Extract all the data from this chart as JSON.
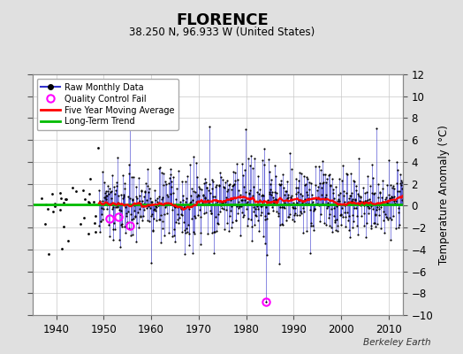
{
  "title": "FLORENCE",
  "subtitle": "38.250 N, 96.933 W (United States)",
  "ylabel": "Temperature Anomaly (°C)",
  "credit": "Berkeley Earth",
  "ylim": [
    -10,
    12
  ],
  "yticks": [
    -10,
    -8,
    -6,
    -4,
    -2,
    0,
    2,
    4,
    6,
    8,
    10,
    12
  ],
  "xlim": [
    1935,
    2013
  ],
  "xticks": [
    1940,
    1950,
    1960,
    1970,
    1980,
    1990,
    2000,
    2010
  ],
  "start_year": 1937,
  "end_year": 2012,
  "bg_color": "#e0e0e0",
  "plot_bg_color": "#ffffff",
  "grid_color": "#c8c8c8",
  "raw_line_color": "#3333cc",
  "raw_dot_color": "#000000",
  "moving_avg_color": "#ff0000",
  "trend_color": "#00bb00",
  "qc_fail_color": "#ff00ff",
  "seed": 42,
  "qc_fail_points": [
    [
      1951.25,
      -1.2
    ],
    [
      1953.17,
      -1.0
    ],
    [
      1955.5,
      -1.8
    ],
    [
      1984.17,
      -8.8
    ]
  ],
  "trend_y": 0.12,
  "figsize": [
    5.24,
    4.0
  ],
  "dpi": 100
}
